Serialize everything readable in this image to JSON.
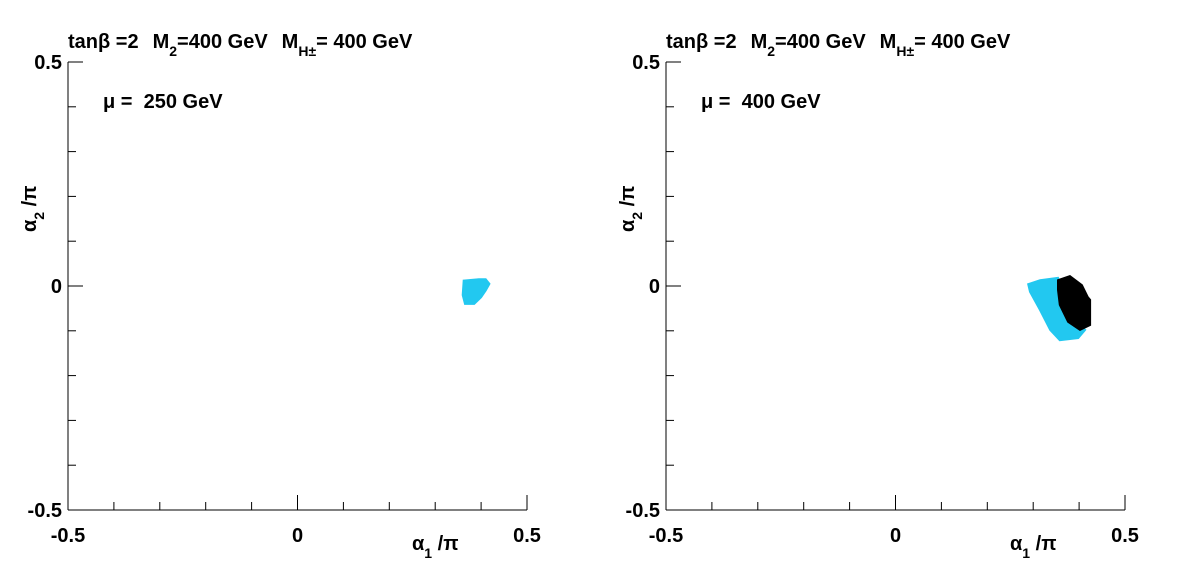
{
  "chart_data": [
    {
      "type": "region",
      "title": [
        {
          "text": "tanβ =2"
        },
        {
          "text": "M",
          "gap": true
        },
        {
          "text": "2",
          "sub": true
        },
        {
          "text": "=400 GeV"
        },
        {
          "text": "M",
          "gap": true
        },
        {
          "text": "H±",
          "sub": true
        },
        {
          "text": "= 400 GeV"
        }
      ],
      "annotation": "μ =  250 GeV",
      "xlabel": [
        {
          "text": "α"
        },
        {
          "text": "1",
          "sub": true
        },
        {
          "text": " /π"
        }
      ],
      "ylabel": [
        {
          "text": "α"
        },
        {
          "text": "2",
          "sub": true
        },
        {
          "text": " /π"
        }
      ],
      "xlim": [
        -0.5,
        0.5
      ],
      "ylim": [
        -0.5,
        0.5
      ],
      "xticks": [
        -0.5,
        0,
        0.5
      ],
      "yticks": [
        -0.5,
        0,
        0.5
      ],
      "xminorticks": [
        -0.4,
        -0.3,
        -0.2,
        -0.1,
        0.1,
        0.2,
        0.3,
        0.4
      ],
      "yminorticks": [
        -0.4,
        -0.3,
        -0.2,
        -0.1,
        0.1,
        0.2,
        0.3,
        0.4
      ],
      "series": [
        {
          "color": "#22c8f0",
          "x": [
            0.362,
            0.395,
            0.41,
            0.418,
            0.41,
            0.4,
            0.385,
            0.365,
            0.36
          ],
          "y": [
            0.012,
            0.015,
            0.015,
            0.005,
            -0.01,
            -0.025,
            -0.04,
            -0.04,
            -0.02
          ]
        }
      ]
    },
    {
      "type": "region",
      "title": [
        {
          "text": "tanβ =2"
        },
        {
          "text": "M",
          "gap": true
        },
        {
          "text": "2",
          "sub": true
        },
        {
          "text": "=400 GeV"
        },
        {
          "text": "M",
          "gap": true
        },
        {
          "text": "H±",
          "sub": true
        },
        {
          "text": "= 400 GeV"
        }
      ],
      "annotation": "μ =  400 GeV",
      "xlabel": [
        {
          "text": "α"
        },
        {
          "text": "1",
          "sub": true
        },
        {
          "text": " /π"
        }
      ],
      "ylabel": [
        {
          "text": "α"
        },
        {
          "text": "2",
          "sub": true
        },
        {
          "text": " /π"
        }
      ],
      "xlim": [
        -0.5,
        0.5
      ],
      "ylim": [
        -0.5,
        0.5
      ],
      "xticks": [
        -0.5,
        0,
        0.5
      ],
      "yticks": [
        -0.5,
        0,
        0.5
      ],
      "xminorticks": [
        -0.4,
        -0.3,
        -0.2,
        -0.1,
        0.1,
        0.2,
        0.3,
        0.4
      ],
      "yminorticks": [
        -0.4,
        -0.3,
        -0.2,
        -0.1,
        0.1,
        0.2,
        0.3,
        0.4
      ],
      "series": [
        {
          "color": "#22c8f0",
          "x": [
            0.289,
            0.315,
            0.354,
            0.363,
            0.38,
            0.413,
            0.398,
            0.358,
            0.337,
            0.315,
            0.293
          ],
          "y": [
            0.004,
            0.013,
            0.018,
            -0.009,
            -0.071,
            -0.098,
            -0.116,
            -0.121,
            -0.098,
            -0.054,
            -0.013
          ]
        },
        {
          "color": "#000000",
          "x": [
            0.354,
            0.38,
            0.406,
            0.419,
            0.424,
            0.424,
            0.402,
            0.376,
            0.358,
            0.354
          ],
          "y": [
            0.013,
            0.022,
            0.002,
            -0.025,
            -0.031,
            -0.087,
            -0.098,
            -0.08,
            -0.042,
            -0.009
          ]
        }
      ]
    }
  ]
}
